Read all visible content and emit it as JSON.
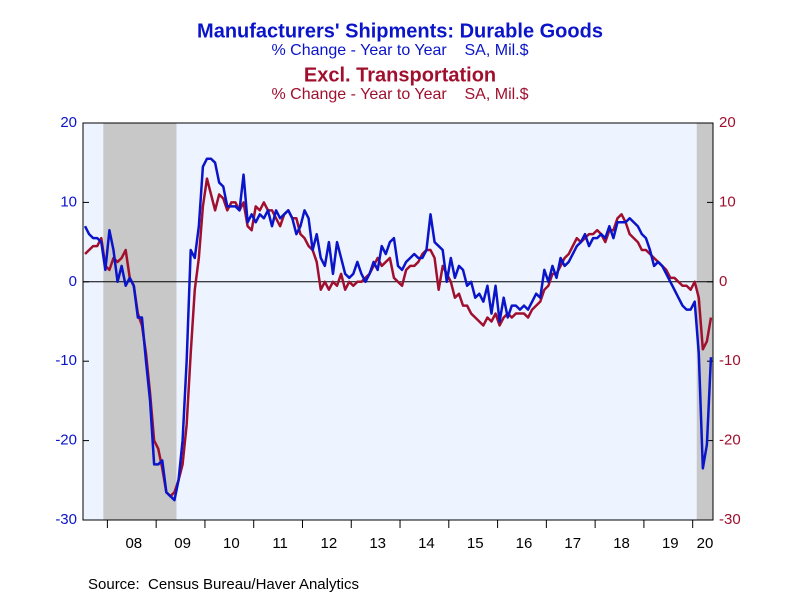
{
  "chart_data": {
    "type": "line",
    "title": "Manufacturers' Shipments: Durable Goods",
    "subtitle": "% Change - Year to Year    SA, Mil.$",
    "title2": "Excl. Transportation",
    "subtitle2": "% Change - Year to Year    SA, Mil.$",
    "source": "Source:  Census Bureau/Haver Analytics",
    "categories": [
      null,
      null,
      null,
      null,
      null,
      null,
      null,
      null,
      null,
      null,
      null,
      null,
      "08",
      null,
      null,
      null,
      null,
      null,
      null,
      null,
      null,
      null,
      null,
      null,
      "09",
      null,
      null,
      null,
      null,
      null,
      null,
      null,
      null,
      null,
      null,
      null,
      "10",
      null,
      null,
      null,
      null,
      null,
      null,
      null,
      null,
      null,
      null,
      null,
      "11",
      null,
      null,
      null,
      null,
      null,
      null,
      null,
      null,
      null,
      null,
      null,
      "12",
      null,
      null,
      null,
      null,
      null,
      null,
      null,
      null,
      null,
      null,
      null,
      "13",
      null,
      null,
      null,
      null,
      null,
      null,
      null,
      null,
      null,
      null,
      null,
      "14",
      null,
      null,
      null,
      null,
      null,
      null,
      null,
      null,
      null,
      null,
      null,
      "15",
      null,
      null,
      null,
      null,
      null,
      null,
      null,
      null,
      null,
      null,
      null,
      "16",
      null,
      null,
      null,
      null,
      null,
      null,
      null,
      null,
      null,
      null,
      null,
      "17",
      null,
      null,
      null,
      null,
      null,
      null,
      null,
      null,
      null,
      null,
      null,
      "18",
      null,
      null,
      null,
      null,
      null,
      null,
      null,
      null,
      null,
      null,
      null,
      "19",
      null,
      null,
      null,
      null,
      null,
      null,
      null,
      null,
      null,
      "20"
    ],
    "series": [
      {
        "name": "Manufacturers' Shipments: Durable Goods",
        "color": "#0a14c8",
        "values": [
          7,
          6,
          5.5,
          5.5,
          5,
          1.5,
          6.5,
          4,
          0,
          2,
          -0.5,
          0.5,
          -0.5,
          -4.5,
          -4.5,
          -10,
          -15,
          -23,
          -23,
          -22.5,
          -26.5,
          -27,
          -27.5,
          -25,
          -20,
          -10,
          4,
          3,
          7,
          14.5,
          15.5,
          15.5,
          15,
          12.5,
          12,
          9.5,
          9.5,
          9.5,
          9,
          13.5,
          7.5,
          8.5,
          7.5,
          8.5,
          8,
          9,
          7,
          9,
          8,
          8.5,
          9,
          8,
          6,
          7,
          9,
          8,
          4,
          6,
          3,
          2,
          5,
          1,
          5,
          3,
          1,
          0.5,
          1,
          2.5,
          1,
          0,
          1,
          2.5,
          1.5,
          4.5,
          3.5,
          5,
          5.5,
          2,
          1.5,
          2.5,
          3,
          3.5,
          3,
          3,
          4,
          8.5,
          5,
          4.5,
          4,
          0,
          3,
          0.5,
          2,
          1.5,
          -0.5,
          0,
          -2,
          -1.5,
          -2.5,
          -0.5,
          -4,
          -0.5,
          -5,
          -2,
          -4.5,
          -3,
          -3,
          -3.5,
          -3,
          -3.5,
          -2.5,
          -1.5,
          -2,
          1.5,
          0,
          2,
          0.5,
          3,
          2,
          2.5,
          3.5,
          4.5,
          5,
          6,
          4.5,
          5.5,
          5.5,
          6,
          5.5,
          7,
          5.5,
          7.5,
          7.5,
          7.5,
          8,
          7.5,
          7,
          6,
          5.5,
          4,
          2,
          2.5,
          2,
          1,
          0,
          -1,
          -2,
          -3,
          -3.5,
          -3.5,
          -2.5,
          -9,
          -23.5,
          -20.5,
          -9.5
        ]
      },
      {
        "name": "Excl. Transportation",
        "color": "#a0102e",
        "axis": "y2",
        "values": [
          3.5,
          4,
          4.5,
          4.5,
          5.5,
          2,
          1.5,
          3,
          2.5,
          3,
          4,
          0.5,
          -0.5,
          -4,
          -5.5,
          -9,
          -14,
          -20,
          -21,
          -23.5,
          -26.5,
          -27,
          -26.5,
          -25,
          -23,
          -18,
          -9,
          -1,
          3,
          9.5,
          13,
          11,
          9,
          11,
          10.5,
          9,
          10,
          10,
          9,
          10,
          7,
          6.5,
          9.5,
          9,
          10,
          9,
          9,
          8,
          7,
          8.5,
          9,
          8,
          8,
          6,
          5.5,
          4.5,
          4,
          2.5,
          -1,
          0,
          -1,
          0,
          -0.5,
          1,
          -1,
          0,
          -0.5,
          0,
          0,
          0.5,
          1,
          2,
          3,
          2,
          2.5,
          3,
          0.5,
          0,
          -0.5,
          1.5,
          2,
          2,
          2.5,
          3.5,
          4,
          4,
          3,
          -1,
          2,
          1,
          0,
          -2,
          -1.5,
          -3,
          -3,
          -4,
          -4.5,
          -5,
          -5.5,
          -4.5,
          -5,
          -4,
          -5.5,
          -4.5,
          -4,
          -4.5,
          -4,
          -4,
          -4,
          -4.5,
          -3.5,
          -3,
          -2.5,
          -1,
          -0.5,
          1,
          1,
          2,
          3,
          3.5,
          4.5,
          5.5,
          5,
          5.5,
          6,
          6,
          6.5,
          6,
          5,
          6.5,
          6.5,
          8,
          8.5,
          7.5,
          6,
          5.5,
          5,
          4,
          4,
          3.5,
          3,
          2.5,
          2,
          1.5,
          0.5,
          0.5,
          0,
          -0.5,
          -0.5,
          -1,
          0,
          -2,
          -8.5,
          -7.5,
          -4.5
        ]
      }
    ],
    "ylim": [
      -30,
      20
    ],
    "yticks": [
      20,
      10,
      0,
      -10,
      -20,
      -30
    ],
    "y2lim": [
      -30,
      20
    ],
    "y2ticks": [
      20,
      10,
      0,
      -10,
      -20,
      -30
    ],
    "recessions": [
      [
        5,
        22
      ],
      [
        151,
        154
      ]
    ]
  }
}
